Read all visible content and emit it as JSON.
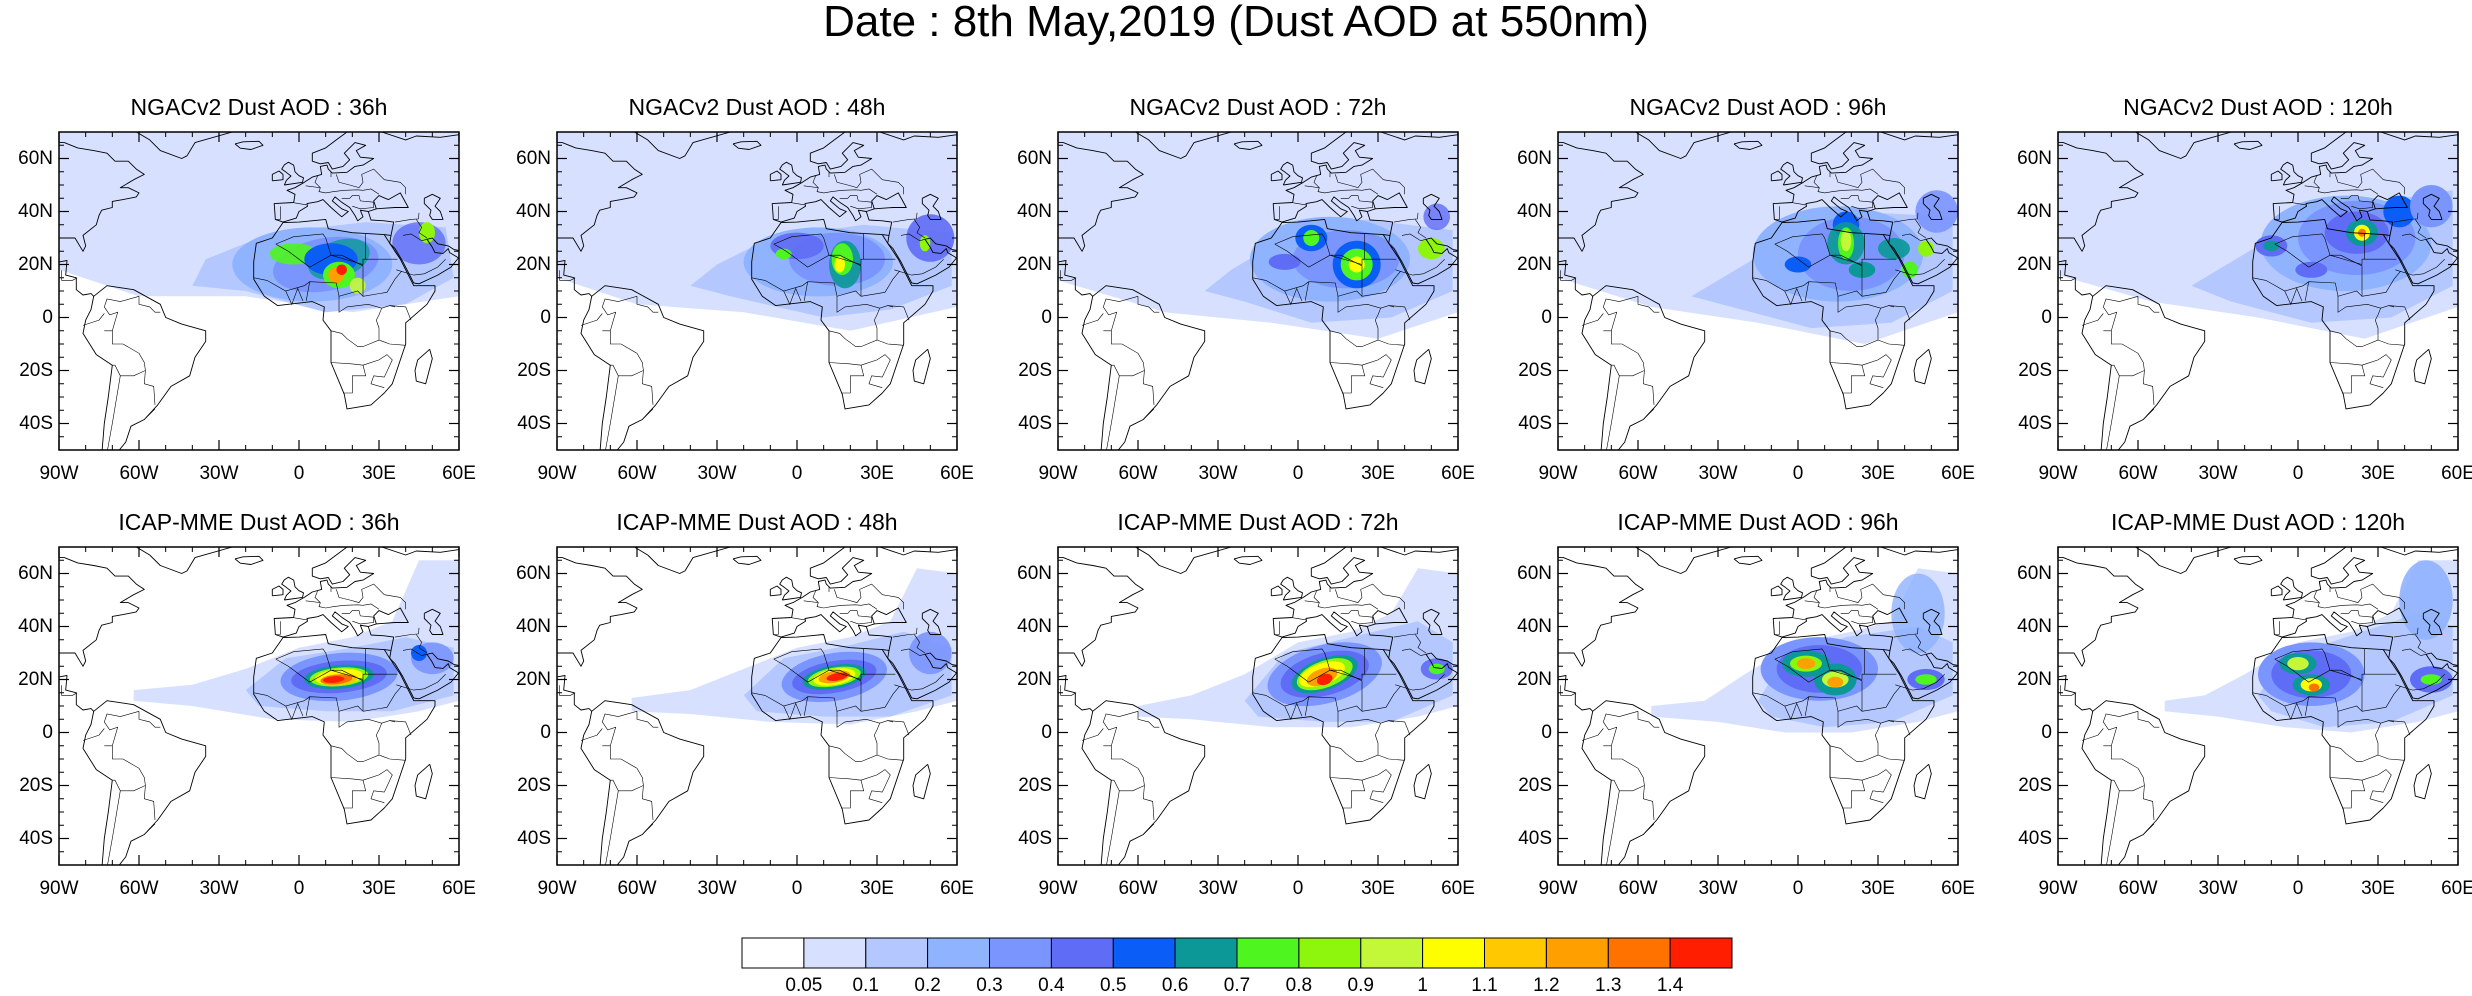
{
  "title": "Date : 8th May,2019 (Dust AOD at 550nm)",
  "panels": [
    {
      "title": "NGACv2 Dust AOD : 36h",
      "model": "NGACv2",
      "lead": "36h"
    },
    {
      "title": "NGACv2 Dust AOD : 48h",
      "model": "NGACv2",
      "lead": "48h"
    },
    {
      "title": "NGACv2 Dust AOD : 72h",
      "model": "NGACv2",
      "lead": "72h"
    },
    {
      "title": "NGACv2 Dust AOD : 96h",
      "model": "NGACv2",
      "lead": "96h"
    },
    {
      "title": "NGACv2 Dust AOD : 120h",
      "model": "NGACv2",
      "lead": "120h"
    },
    {
      "title": "ICAP-MME Dust AOD : 36h",
      "model": "ICAP-MME",
      "lead": "36h"
    },
    {
      "title": "ICAP-MME Dust AOD : 48h",
      "model": "ICAP-MME",
      "lead": "48h"
    },
    {
      "title": "ICAP-MME Dust AOD : 72h",
      "model": "ICAP-MME",
      "lead": "72h"
    },
    {
      "title": "ICAP-MME Dust AOD : 96h",
      "model": "ICAP-MME",
      "lead": "96h"
    },
    {
      "title": "ICAP-MME Dust AOD : 120h",
      "model": "ICAP-MME",
      "lead": "120h"
    }
  ],
  "map_extent": {
    "lon": [
      -90,
      60
    ],
    "lat": [
      -50,
      70
    ]
  },
  "lat_ticks": [
    {
      "value": 60,
      "label": "60N"
    },
    {
      "value": 40,
      "label": "40N"
    },
    {
      "value": 20,
      "label": "20N"
    },
    {
      "value": 0,
      "label": "0"
    },
    {
      "value": -20,
      "label": "20S"
    },
    {
      "value": -40,
      "label": "40S"
    }
  ],
  "lon_ticks": [
    {
      "value": -90,
      "label": "90W"
    },
    {
      "value": -60,
      "label": "60W"
    },
    {
      "value": -30,
      "label": "30W"
    },
    {
      "value": 0,
      "label": "0"
    },
    {
      "value": 30,
      "label": "30E"
    },
    {
      "value": 60,
      "label": "60E"
    }
  ],
  "colorbar": {
    "colors": [
      "#ffffff",
      "#d7e1ff",
      "#b4c8ff",
      "#8fb3ff",
      "#7b95ff",
      "#5f6cf5",
      "#0a5ef7",
      "#0b9896",
      "#4ef51e",
      "#8ef60c",
      "#c2f838",
      "#fffe00",
      "#ffc800",
      "#ffa000",
      "#ff7200",
      "#ff1e00"
    ],
    "labels": [
      "0.05",
      "0.1",
      "0.2",
      "0.3",
      "0.4",
      "0.5",
      "0.6",
      "0.7",
      "0.8",
      "0.9",
      "1",
      "1.1",
      "1.2",
      "1.3",
      "1.4"
    ]
  }
}
